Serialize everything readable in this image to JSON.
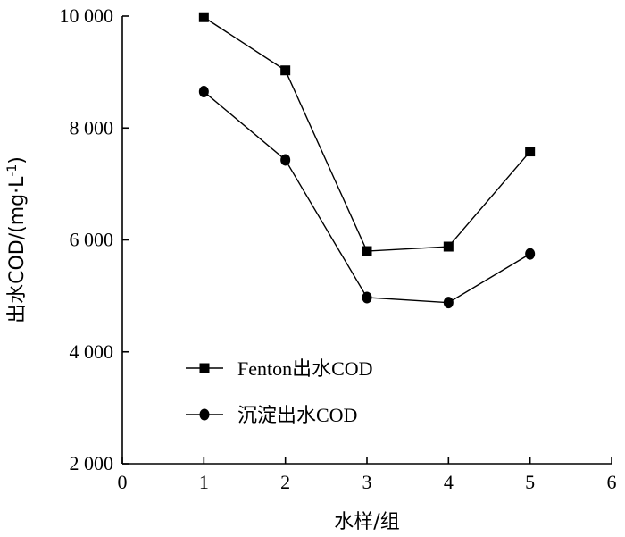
{
  "chart_data": {
    "type": "line",
    "xlabel": "水样/组",
    "ylabel": "出水COD/(mg·L",
    "ylabel_sup": "-1",
    "ylabel_close": ")",
    "xlim": [
      0,
      6
    ],
    "ylim": [
      2000,
      10000
    ],
    "x_ticks": [
      0,
      1,
      2,
      3,
      4,
      5,
      6
    ],
    "x_tick_labels": [
      "0",
      "1",
      "2",
      "3",
      "4",
      "5",
      "6"
    ],
    "y_ticks": [
      2000,
      4000,
      6000,
      8000,
      10000
    ],
    "y_tick_labels": [
      "2 000",
      "4 000",
      "6 000",
      "8 000",
      "10 000"
    ],
    "grid": false,
    "legend_position": "bottom-left",
    "x": [
      1,
      2,
      3,
      4,
      5
    ],
    "series": [
      {
        "name": "Fenton出水COD",
        "marker": "square",
        "values": [
          9980,
          9030,
          5800,
          5880,
          7580
        ]
      },
      {
        "name": "沉淀出水COD",
        "marker": "circle",
        "values": [
          8650,
          7430,
          4970,
          4880,
          5750
        ]
      }
    ]
  }
}
